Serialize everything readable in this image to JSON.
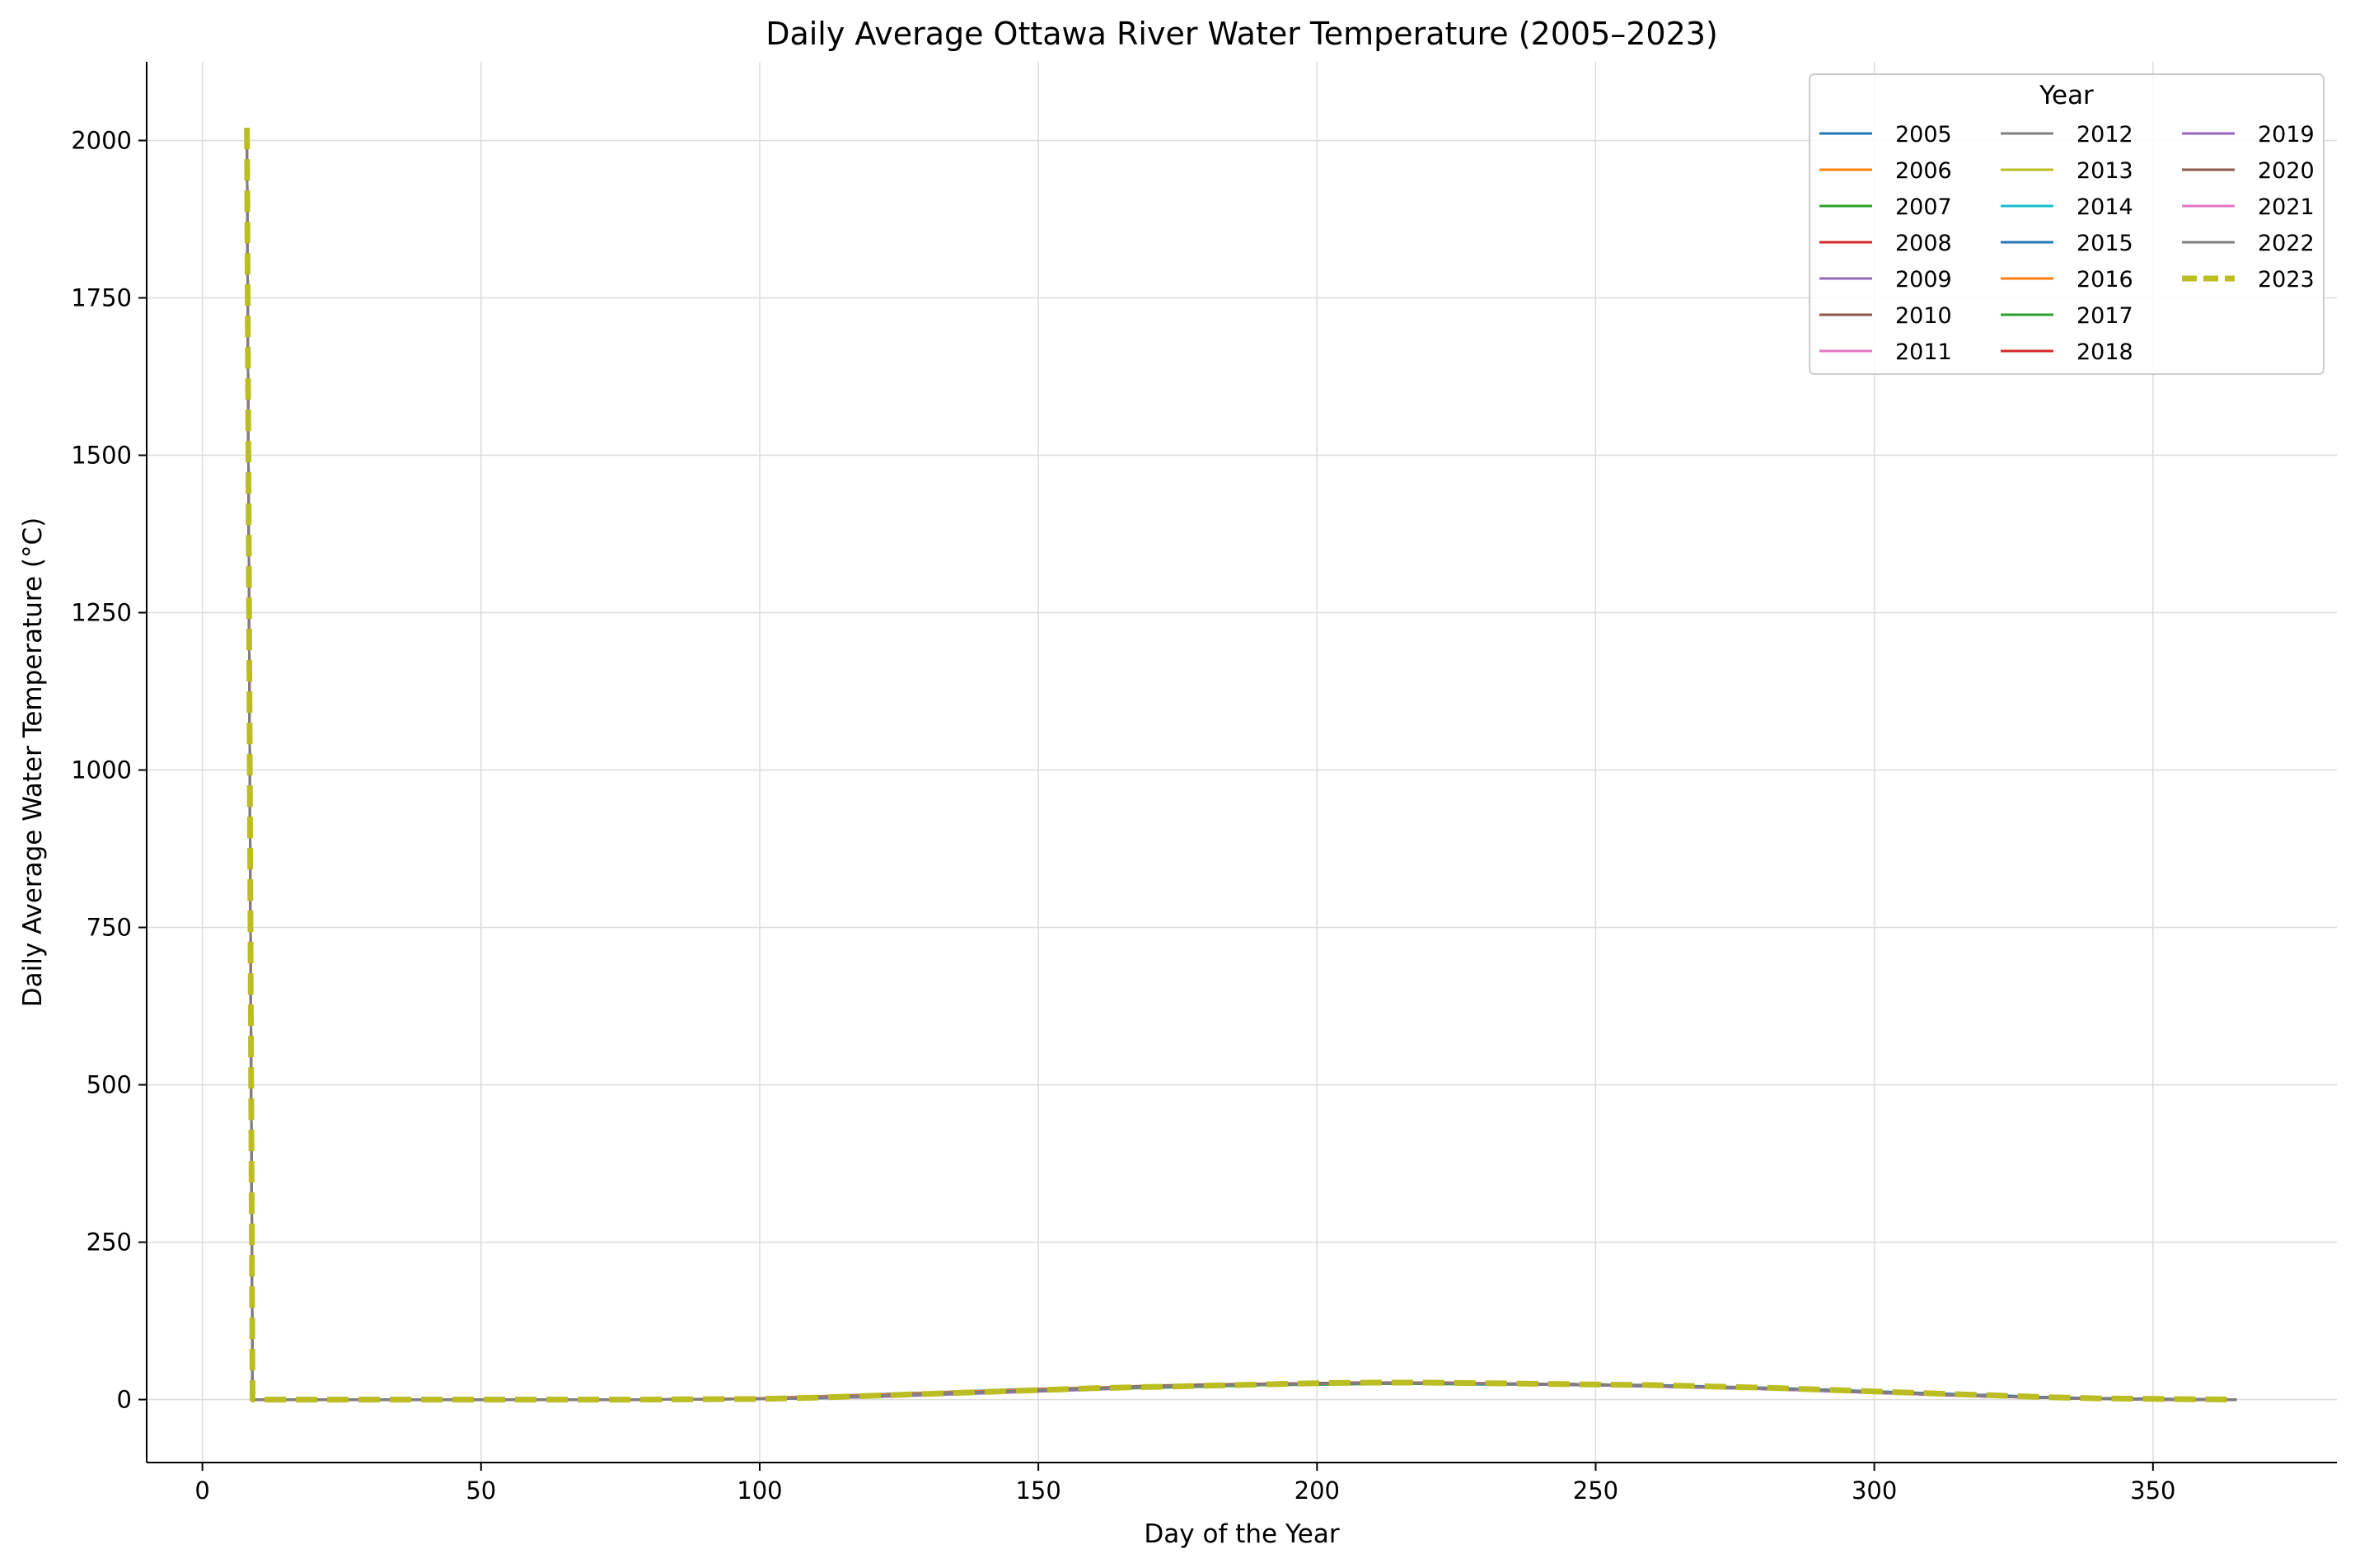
{
  "chart_data": {
    "type": "line",
    "title": "Daily Average Ottawa River Water Temperature (2005–2023)",
    "xlabel": "Day of the Year",
    "ylabel": "Daily Average Water Temperature (°C)",
    "xlim": [
      -10,
      383
    ],
    "ylim": [
      -100,
      2125
    ],
    "xticks": [
      0,
      50,
      100,
      150,
      200,
      250,
      300,
      350
    ],
    "yticks": [
      0,
      250,
      500,
      750,
      1000,
      1250,
      1500,
      1750,
      2000
    ],
    "grid": true,
    "legend": {
      "title": "Year",
      "placement": "upper-right",
      "columns": 3
    },
    "x": [
      8,
      9,
      20,
      40,
      60,
      80,
      100,
      110,
      120,
      130,
      140,
      150,
      160,
      170,
      180,
      190,
      200,
      210,
      220,
      230,
      240,
      250,
      260,
      270,
      280,
      290,
      300,
      310,
      320,
      330,
      340,
      350,
      365
    ],
    "series": [
      {
        "name": "2005",
        "color": "#1f77b4",
        "dashed": false,
        "values": [
          2020,
          0,
          0,
          0,
          0,
          0,
          1,
          3,
          6,
          9,
          12,
          15,
          17,
          20,
          22,
          24,
          25,
          26,
          26,
          25,
          25,
          24,
          22,
          20,
          18,
          16,
          13,
          10,
          7,
          4,
          2,
          1,
          0
        ]
      },
      {
        "name": "2006",
        "color": "#ff7f0e",
        "dashed": false,
        "values": [
          2020,
          0,
          0,
          0,
          0,
          0,
          2,
          4,
          7,
          10,
          13,
          16,
          18,
          20,
          22,
          24,
          25,
          26,
          26,
          26,
          25,
          24,
          22,
          20,
          18,
          15,
          12,
          9,
          6,
          3,
          2,
          1,
          0
        ]
      },
      {
        "name": "2007",
        "color": "#2ca02c",
        "dashed": false,
        "values": [
          2020,
          0,
          0,
          0,
          0,
          0,
          1,
          3,
          6,
          9,
          12,
          15,
          18,
          20,
          22,
          24,
          25,
          26,
          26,
          25,
          24,
          23,
          22,
          20,
          18,
          15,
          12,
          9,
          6,
          3,
          1,
          0,
          0
        ]
      },
      {
        "name": "2008",
        "color": "#d62728",
        "dashed": false,
        "values": [
          2020,
          0,
          0,
          0,
          0,
          0,
          1,
          2,
          5,
          8,
          11,
          14,
          17,
          19,
          21,
          23,
          24,
          25,
          25,
          24,
          24,
          23,
          21,
          19,
          17,
          14,
          11,
          8,
          5,
          3,
          1,
          0,
          0
        ]
      },
      {
        "name": "2009",
        "color": "#9467bd",
        "dashed": false,
        "values": [
          2020,
          0,
          0,
          0,
          0,
          0,
          1,
          2,
          4,
          7,
          10,
          13,
          16,
          19,
          21,
          23,
          24,
          25,
          25,
          25,
          24,
          23,
          21,
          19,
          17,
          14,
          11,
          8,
          5,
          3,
          1,
          0,
          0
        ]
      },
      {
        "name": "2010",
        "color": "#8c564b",
        "dashed": false,
        "values": [
          2020,
          0,
          0,
          0,
          0,
          0,
          2,
          5,
          8,
          11,
          14,
          17,
          19,
          21,
          23,
          25,
          26,
          26,
          26,
          25,
          24,
          23,
          21,
          19,
          17,
          15,
          12,
          9,
          6,
          3,
          1,
          0,
          0
        ]
      },
      {
        "name": "2011",
        "color": "#e377c2",
        "dashed": false,
        "values": [
          2020,
          0,
          0,
          0,
          0,
          0,
          1,
          2,
          5,
          8,
          11,
          14,
          17,
          20,
          22,
          24,
          25,
          26,
          26,
          25,
          25,
          24,
          22,
          20,
          18,
          15,
          12,
          9,
          6,
          3,
          1,
          0,
          0
        ]
      },
      {
        "name": "2012",
        "color": "#7f7f7f",
        "dashed": false,
        "values": [
          2020,
          0,
          0,
          0,
          0,
          0,
          2,
          5,
          8,
          11,
          14,
          17,
          19,
          22,
          24,
          25,
          26,
          27,
          27,
          26,
          25,
          24,
          22,
          20,
          18,
          15,
          12,
          9,
          6,
          3,
          1,
          0,
          0
        ]
      },
      {
        "name": "2013",
        "color": "#bcbd22",
        "dashed": false,
        "values": [
          2020,
          0,
          0,
          0,
          0,
          0,
          1,
          3,
          6,
          9,
          12,
          15,
          18,
          20,
          22,
          24,
          25,
          26,
          26,
          25,
          25,
          24,
          22,
          20,
          18,
          15,
          12,
          9,
          6,
          3,
          1,
          0,
          0
        ]
      },
      {
        "name": "2014",
        "color": "#17becf",
        "dashed": false,
        "values": [
          2020,
          0,
          0,
          0,
          0,
          0,
          1,
          2,
          5,
          8,
          11,
          14,
          17,
          19,
          21,
          23,
          24,
          25,
          25,
          24,
          24,
          23,
          21,
          19,
          17,
          14,
          11,
          8,
          5,
          3,
          1,
          0,
          0
        ]
      },
      {
        "name": "2015",
        "color": "#1f77b4",
        "dashed": false,
        "values": [
          2020,
          0,
          0,
          0,
          0,
          0,
          1,
          3,
          6,
          9,
          12,
          15,
          18,
          20,
          22,
          24,
          25,
          26,
          26,
          26,
          25,
          24,
          23,
          21,
          19,
          16,
          13,
          10,
          7,
          4,
          2,
          1,
          0
        ]
      },
      {
        "name": "2016",
        "color": "#ff7f0e",
        "dashed": false,
        "values": [
          2020,
          0,
          0,
          0,
          0,
          0,
          2,
          4,
          7,
          10,
          13,
          16,
          19,
          21,
          23,
          25,
          26,
          27,
          27,
          26,
          25,
          24,
          22,
          20,
          18,
          15,
          12,
          9,
          6,
          3,
          1,
          0,
          0
        ]
      },
      {
        "name": "2017",
        "color": "#2ca02c",
        "dashed": false,
        "values": [
          2020,
          0,
          0,
          0,
          0,
          0,
          1,
          2,
          5,
          8,
          11,
          14,
          17,
          19,
          21,
          23,
          24,
          25,
          25,
          25,
          24,
          23,
          22,
          20,
          18,
          15,
          12,
          9,
          6,
          3,
          1,
          0,
          0
        ]
      },
      {
        "name": "2018",
        "color": "#d62728",
        "dashed": false,
        "values": [
          2020,
          0,
          0,
          0,
          0,
          0,
          1,
          3,
          6,
          9,
          12,
          15,
          18,
          21,
          23,
          25,
          26,
          27,
          27,
          26,
          25,
          24,
          22,
          20,
          17,
          14,
          11,
          8,
          5,
          3,
          1,
          0,
          0
        ]
      },
      {
        "name": "2019",
        "color": "#9467bd",
        "dashed": false,
        "values": [
          2020,
          0,
          0,
          0,
          0,
          0,
          1,
          2,
          5,
          8,
          11,
          14,
          17,
          20,
          22,
          24,
          25,
          26,
          26,
          25,
          24,
          23,
          21,
          19,
          17,
          14,
          11,
          8,
          5,
          3,
          1,
          0,
          0
        ]
      },
      {
        "name": "2020",
        "color": "#8c564b",
        "dashed": false,
        "values": [
          2020,
          0,
          0,
          0,
          0,
          0,
          1,
          3,
          6,
          9,
          12,
          15,
          18,
          21,
          23,
          25,
          26,
          27,
          27,
          26,
          25,
          24,
          22,
          20,
          18,
          15,
          12,
          9,
          6,
          3,
          1,
          0,
          0
        ]
      },
      {
        "name": "2021",
        "color": "#e377c2",
        "dashed": false,
        "values": [
          2020,
          0,
          0,
          0,
          0,
          0,
          1,
          3,
          6,
          9,
          12,
          15,
          18,
          20,
          22,
          24,
          25,
          26,
          26,
          26,
          25,
          24,
          22,
          20,
          18,
          15,
          12,
          9,
          6,
          3,
          1,
          0,
          0
        ]
      },
      {
        "name": "2022",
        "color": "#7f7f7f",
        "dashed": false,
        "values": [
          2020,
          0,
          0,
          0,
          0,
          0,
          1,
          3,
          6,
          9,
          12,
          15,
          18,
          20,
          22,
          24,
          25,
          26,
          26,
          25,
          25,
          24,
          22,
          20,
          18,
          15,
          12,
          9,
          6,
          3,
          1,
          0,
          0
        ]
      },
      {
        "name": "2023",
        "color": "#bcbd22",
        "dashed": true,
        "values": [
          2020,
          0,
          0,
          0,
          0,
          0,
          1,
          3,
          6,
          9,
          12,
          15,
          18,
          20,
          22,
          24,
          26,
          27,
          27,
          26,
          25,
          24,
          23,
          21,
          19,
          16,
          13,
          10,
          7,
          4,
          2,
          1,
          0
        ]
      }
    ]
  }
}
